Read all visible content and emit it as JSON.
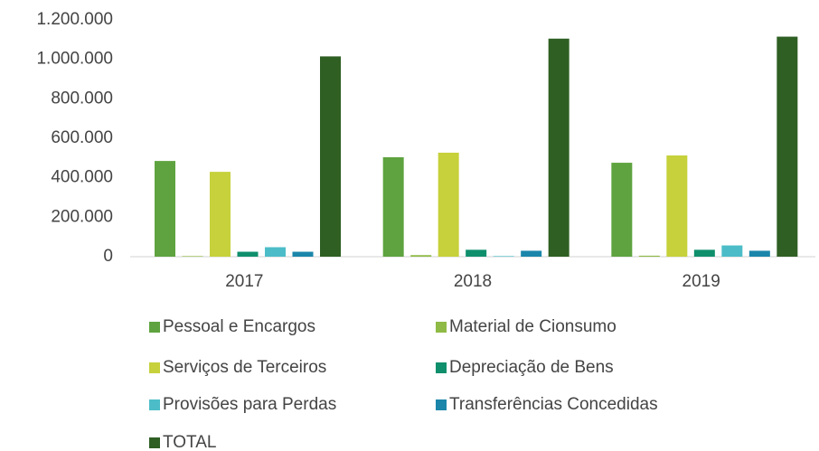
{
  "chart_data": {
    "type": "bar",
    "categories": [
      "2017",
      "2018",
      "2019"
    ],
    "series": [
      {
        "name": "Pessoal e Encargos",
        "color": "#5ea33f",
        "values": [
          485000,
          504000,
          476000
        ]
      },
      {
        "name": "Material de Cionsumo",
        "color": "#8fba45",
        "values": [
          3000,
          8000,
          5000
        ]
      },
      {
        "name": "Serviços de Terceiros",
        "color": "#c6d13b",
        "values": [
          430000,
          527000,
          513000
        ]
      },
      {
        "name": "Depreciação de Bens",
        "color": "#0f8f6c",
        "values": [
          25000,
          35000,
          35000
        ]
      },
      {
        "name": "Provisões para Perdas",
        "color": "#4cbdc8",
        "values": [
          48000,
          3000,
          57000
        ]
      },
      {
        "name": "Transferências Concedidas",
        "color": "#1b86aa",
        "values": [
          25000,
          30000,
          30000
        ]
      },
      {
        "name": "TOTAL",
        "color": "#2f5f23",
        "values": [
          1015000,
          1105000,
          1115000
        ]
      }
    ],
    "ylim": [
      0,
      1200000
    ],
    "yticks": [
      0,
      {
        "value": 200000,
        "label": "200.000"
      },
      {
        "value": 400000,
        "label": "400.000"
      },
      {
        "value": 600000,
        "label": "600.000"
      },
      {
        "value": 800000,
        "label": "800.000"
      },
      {
        "value": 1000000,
        "label": "1.000.000"
      },
      {
        "value": 1200000,
        "label": "1.200.000"
      }
    ],
    "grid": false
  }
}
